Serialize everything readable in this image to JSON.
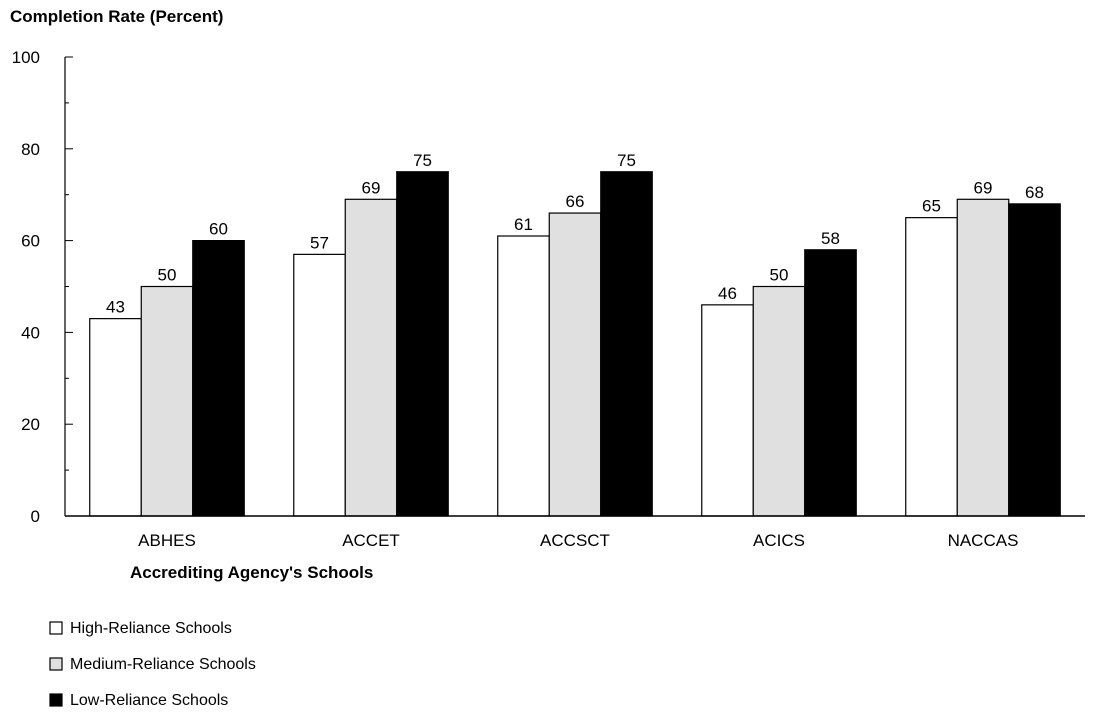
{
  "chart_data": {
    "type": "bar",
    "title": "Completion Rate (Percent)",
    "xlabel": "Accrediting Agency's Schools",
    "ylabel": "",
    "ylim": [
      0,
      100
    ],
    "yticks": [
      0,
      20,
      40,
      60,
      80,
      100
    ],
    "categories": [
      "ABHES",
      "ACCET",
      "ACCSCT",
      "ACICS",
      "NACCAS"
    ],
    "series": [
      {
        "name": "High-Reliance Schools",
        "values": [
          43,
          57,
          61,
          46,
          65
        ],
        "color": "#ffffff"
      },
      {
        "name": "Medium-Reliance Schools",
        "values": [
          50,
          69,
          66,
          50,
          69
        ],
        "color": "#e0e0e0"
      },
      {
        "name": "Low-Reliance Schools",
        "values": [
          60,
          75,
          75,
          58,
          68
        ],
        "color": "#000000"
      }
    ],
    "legend_position": "bottom-left",
    "grid": false
  }
}
